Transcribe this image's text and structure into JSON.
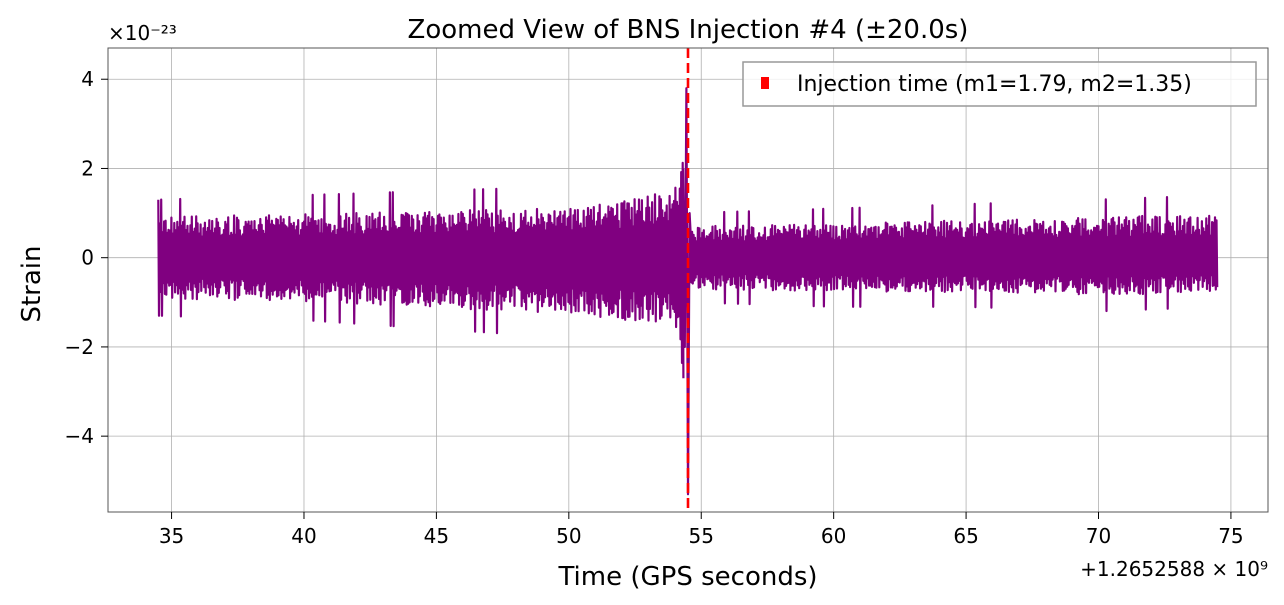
{
  "chart_data": {
    "type": "line",
    "title": "Zoomed View of BNS Injection #4 (±20.0s)",
    "xlabel": "Time (GPS seconds)",
    "ylabel": "Strain",
    "x_offset_label": "+1.2652588 × 10⁹",
    "y_scale_label": "×10⁻²³",
    "xlim": [
      32.6,
      76.4
    ],
    "ylim": [
      -5.7,
      4.7
    ],
    "x_ticks": [
      35,
      40,
      45,
      50,
      55,
      60,
      65,
      70,
      75
    ],
    "x_tick_labels": [
      "35",
      "40",
      "45",
      "50",
      "55",
      "60",
      "65",
      "70",
      "75"
    ],
    "y_ticks": [
      4,
      2,
      0,
      -2,
      -4
    ],
    "y_tick_labels": [
      "4",
      "2",
      "0",
      "−2",
      "−4"
    ],
    "grid": true,
    "legend_placement": "top-right",
    "series": [
      {
        "color": "#800080",
        "x_range": [
          34.5,
          74.5
        ],
        "pre_envelope": [
          [
            34.5,
            1.3,
            -1.3
          ],
          [
            40,
            1.4,
            -1.4
          ],
          [
            45,
            1.5,
            -1.6
          ],
          [
            50,
            1.6,
            -1.8
          ],
          [
            52,
            1.8,
            -2.0
          ],
          [
            54,
            2.2,
            -2.1
          ],
          [
            54.5,
            3.8,
            -5.3
          ]
        ],
        "post_envelope": [
          [
            54.6,
            1.0,
            -1.0
          ],
          [
            60,
            1.1,
            -1.1
          ],
          [
            65,
            1.2,
            -1.1
          ],
          [
            70,
            1.3,
            -1.2
          ],
          [
            74.5,
            1.4,
            -1.1
          ]
        ]
      }
    ],
    "markers": [
      {
        "type": "vline",
        "x": 54.5,
        "color": "#ff0000",
        "style": "dashed",
        "label": "Injection time (m1=1.79, m2=1.35)"
      }
    ]
  }
}
